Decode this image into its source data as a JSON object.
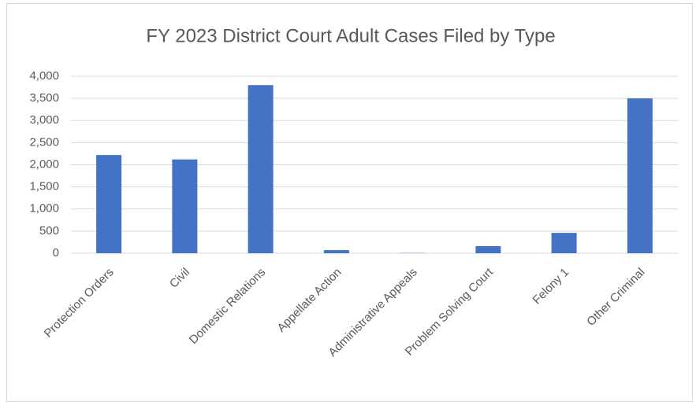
{
  "chart_data": {
    "type": "bar",
    "title": "FY 2023 District Court Adult Cases Filed by Type",
    "categories": [
      "Protection Orders",
      "Civil",
      "Domestic Relations",
      "Appellate Action",
      "Administrative Appeals",
      "Problem Solving Court",
      "Felony 1",
      "Other Criminal"
    ],
    "values": [
      2220,
      2120,
      3800,
      70,
      5,
      160,
      460,
      3500
    ],
    "color": "#4472c4",
    "ylim": [
      0,
      4000
    ],
    "yticks": [
      0,
      500,
      {
        "value": 1000,
        "label": "1,000"
      },
      {
        "value": 1500,
        "label": "1,500"
      },
      {
        "value": 2000,
        "label": "2,000"
      },
      {
        "value": 2500,
        "label": "2,500"
      },
      {
        "value": 3000,
        "label": "3,000"
      },
      {
        "value": 3500,
        "label": "3,500"
      },
      {
        "value": 4000,
        "label": "4,000"
      }
    ],
    "grid": true
  }
}
